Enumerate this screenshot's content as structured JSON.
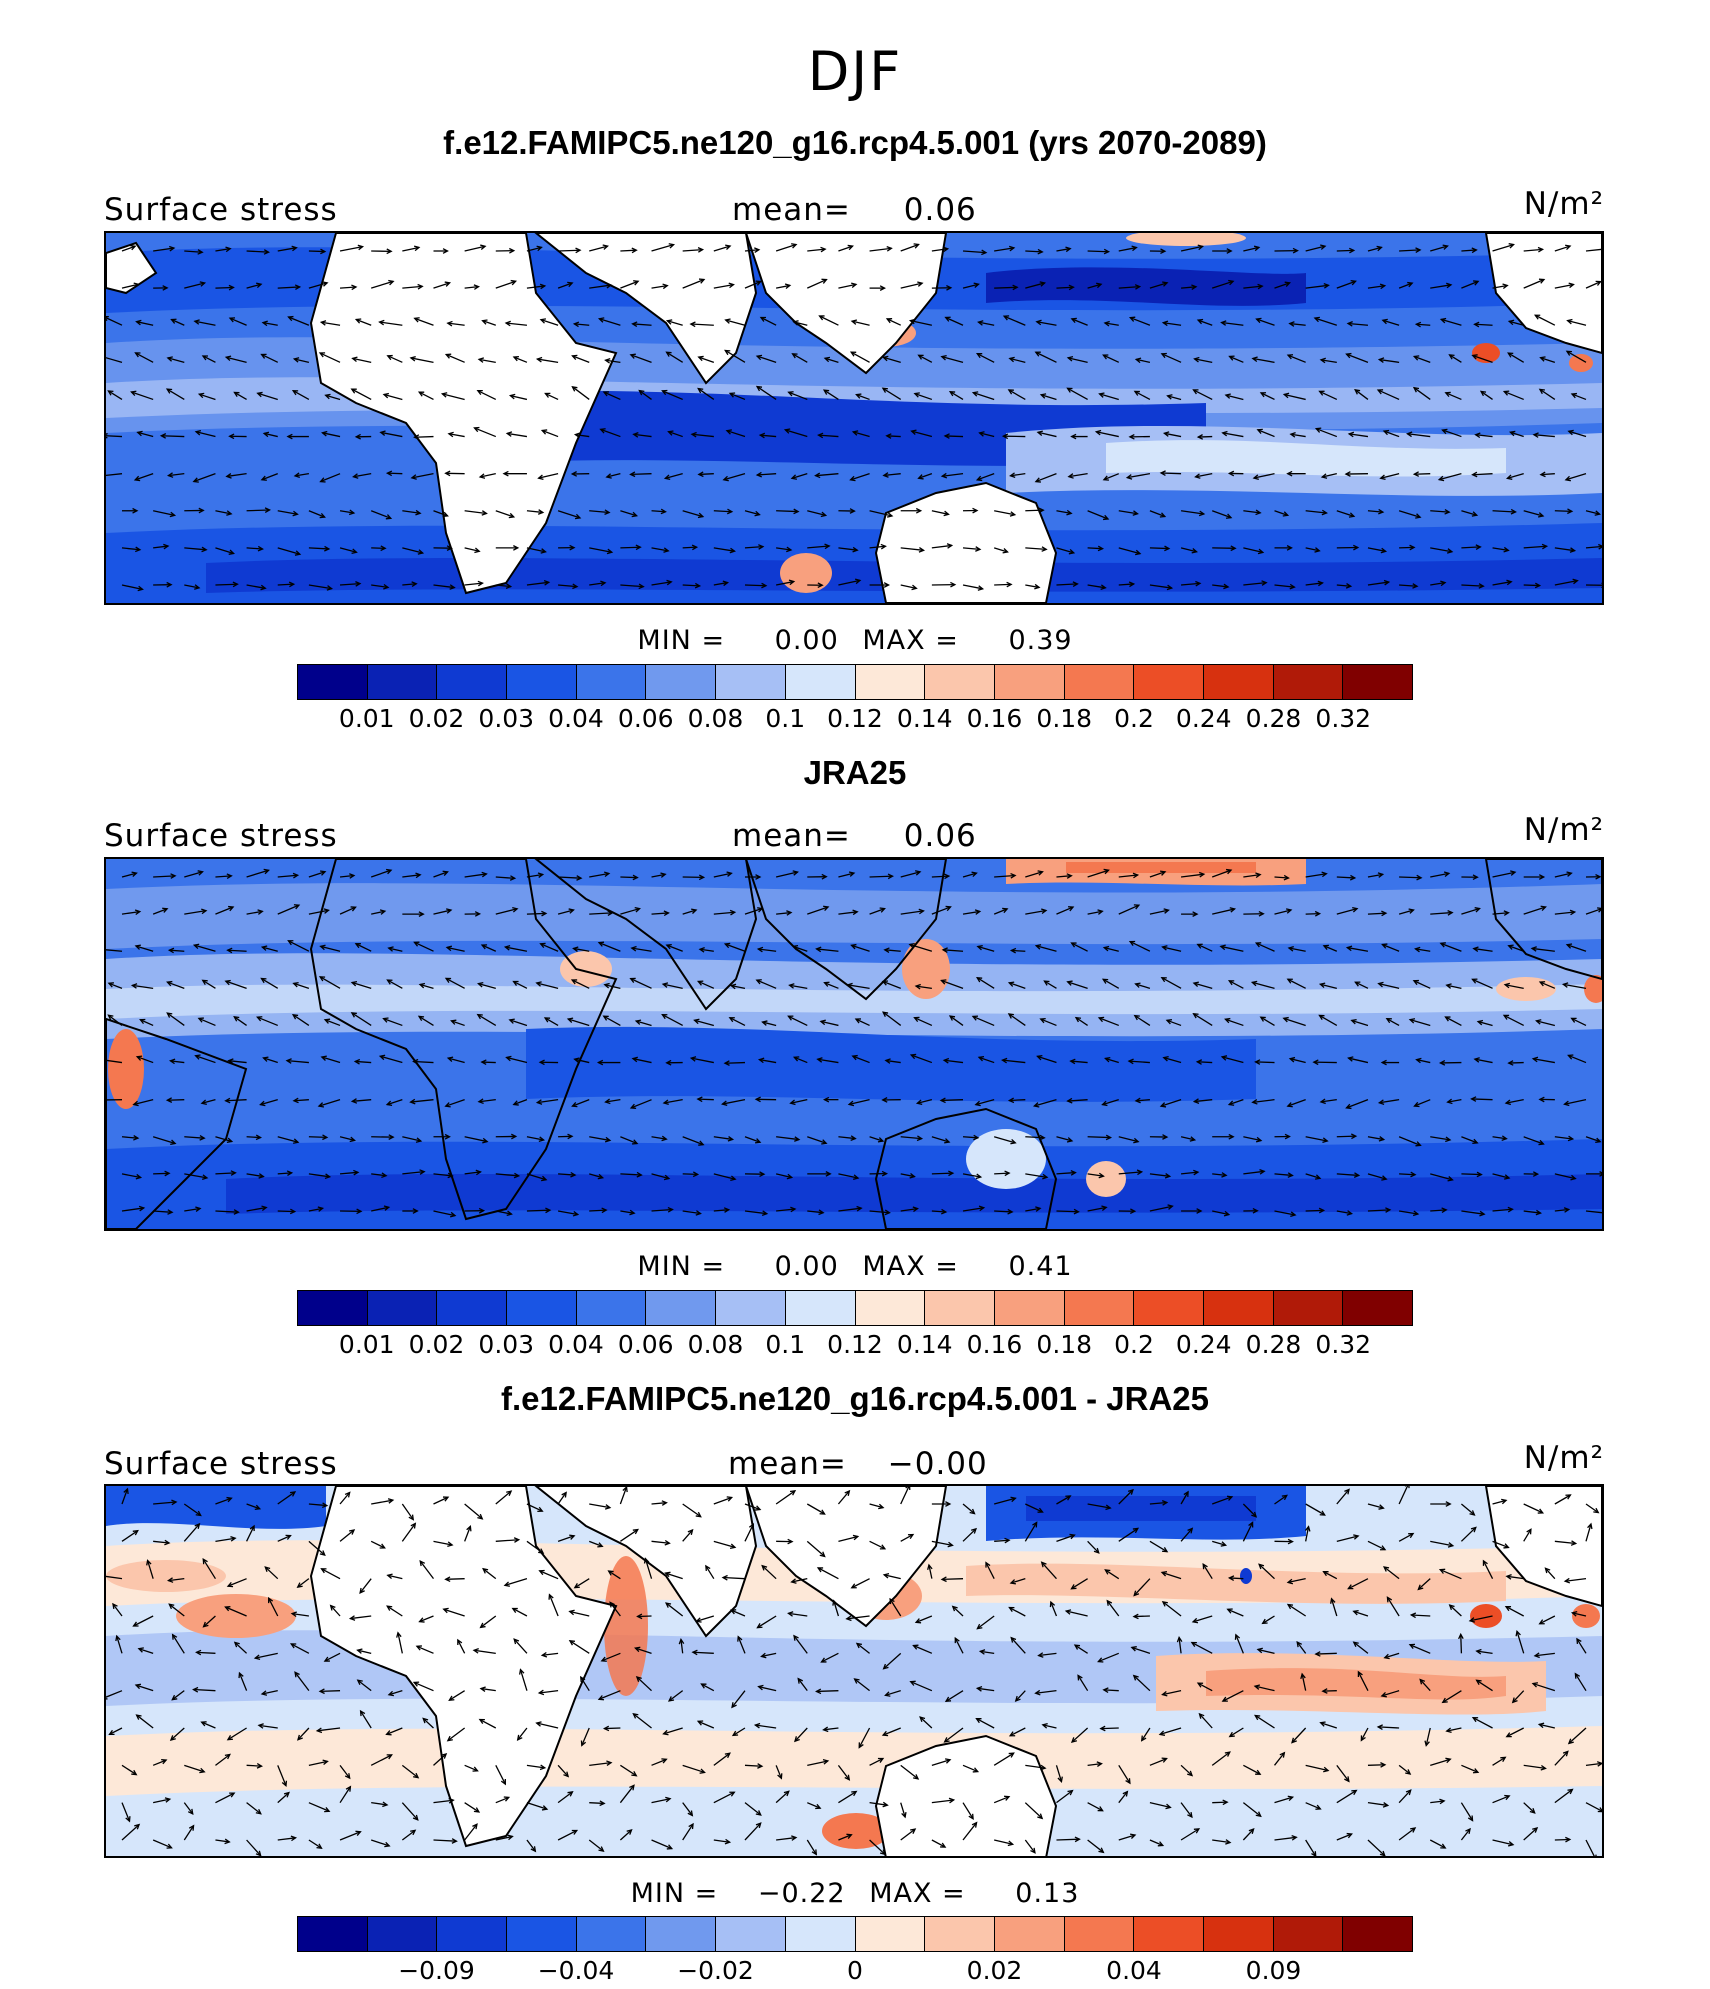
{
  "title": "DJF",
  "colors": [
    "#00008b",
    "#0a22b4",
    "#0f3ad2",
    "#1a55e4",
    "#3b74ea",
    "#7099ee",
    "#a6bff5",
    "#d6e6fb",
    "#fde8d8",
    "#fbc6ac",
    "#f8a07e",
    "#f47850",
    "#ec4e26",
    "#d7310f",
    "#b01a08",
    "#800000"
  ],
  "panels": [
    {
      "title": "f.e12.FAMIPC5.ne120_g16.rcp4.5.001 (yrs 2070-2089)",
      "field_label": "Surface stress",
      "mean_label": "mean=",
      "mean_value": "0.06",
      "units": "N/m²",
      "min_label": "MIN =",
      "min_value": "0.00",
      "max_label": "MAX =",
      "max_value": "0.39",
      "colorbar_labels": [
        "0.01",
        "0.02",
        "0.03",
        "0.04",
        "0.06",
        "0.08",
        "0.1",
        "0.12",
        "0.14",
        "0.16",
        "0.18",
        "0.2",
        "0.24",
        "0.28",
        "0.32"
      ]
    },
    {
      "title": "JRA25",
      "field_label": "Surface stress",
      "mean_label": "mean=",
      "mean_value": "0.06",
      "units": "N/m²",
      "min_label": "MIN =",
      "min_value": "0.00",
      "max_label": "MAX =",
      "max_value": "0.41",
      "colorbar_labels": [
        "0.01",
        "0.02",
        "0.03",
        "0.04",
        "0.06",
        "0.08",
        "0.1",
        "0.12",
        "0.14",
        "0.16",
        "0.18",
        "0.2",
        "0.24",
        "0.28",
        "0.32"
      ]
    },
    {
      "title": "f.e12.FAMIPC5.ne120_g16.rcp4.5.001 - JRA25",
      "field_label": "Surface stress",
      "mean_label": "mean=",
      "mean_value": "−0.00",
      "units": "N/m²",
      "min_label": "MIN =",
      "min_value": "−0.22",
      "max_label": "MAX =",
      "max_value": "0.13",
      "colorbar_labels": [
        "−0.09",
        "−0.04",
        "−0.02",
        "0",
        "0.02",
        "0.04",
        "0.09"
      ]
    }
  ]
}
